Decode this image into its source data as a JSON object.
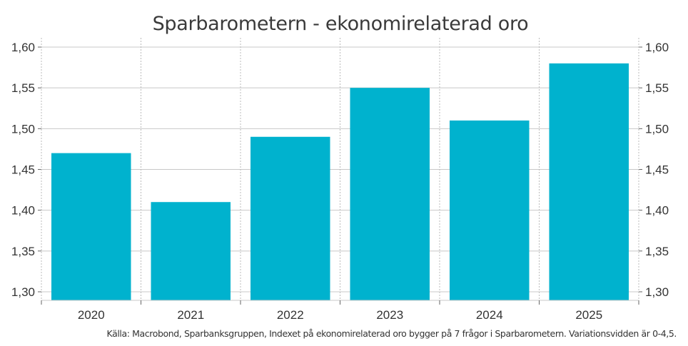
{
  "chart_data": {
    "type": "bar",
    "title": "Sparbarometern - ekonomirelaterad oro",
    "categories": [
      "2020",
      "2021",
      "2022",
      "2023",
      "2024",
      "2025"
    ],
    "values": [
      1.47,
      1.41,
      1.49,
      1.55,
      1.51,
      1.58
    ],
    "xlabel": "",
    "ylabel": "",
    "ylim": [
      1.29,
      1.61
    ],
    "yticks": [
      1.3,
      1.35,
      1.4,
      1.45,
      1.5,
      1.55,
      1.6
    ],
    "ytick_labels": [
      "1,30",
      "1,35",
      "1,40",
      "1,45",
      "1,50",
      "1,55",
      "1,60"
    ],
    "y_axis_both_sides": true,
    "grid": {
      "horizontal": "solid",
      "vertical": "dotted"
    },
    "legend": null,
    "bar_color": "#00B2CE"
  },
  "source_note": "Källa: Macrobond, Sparbanksgruppen, Indexet på ekonomirelaterad oro bygger på 7 frågor i Sparbarometern. Variationsvidden är 0-4,5."
}
